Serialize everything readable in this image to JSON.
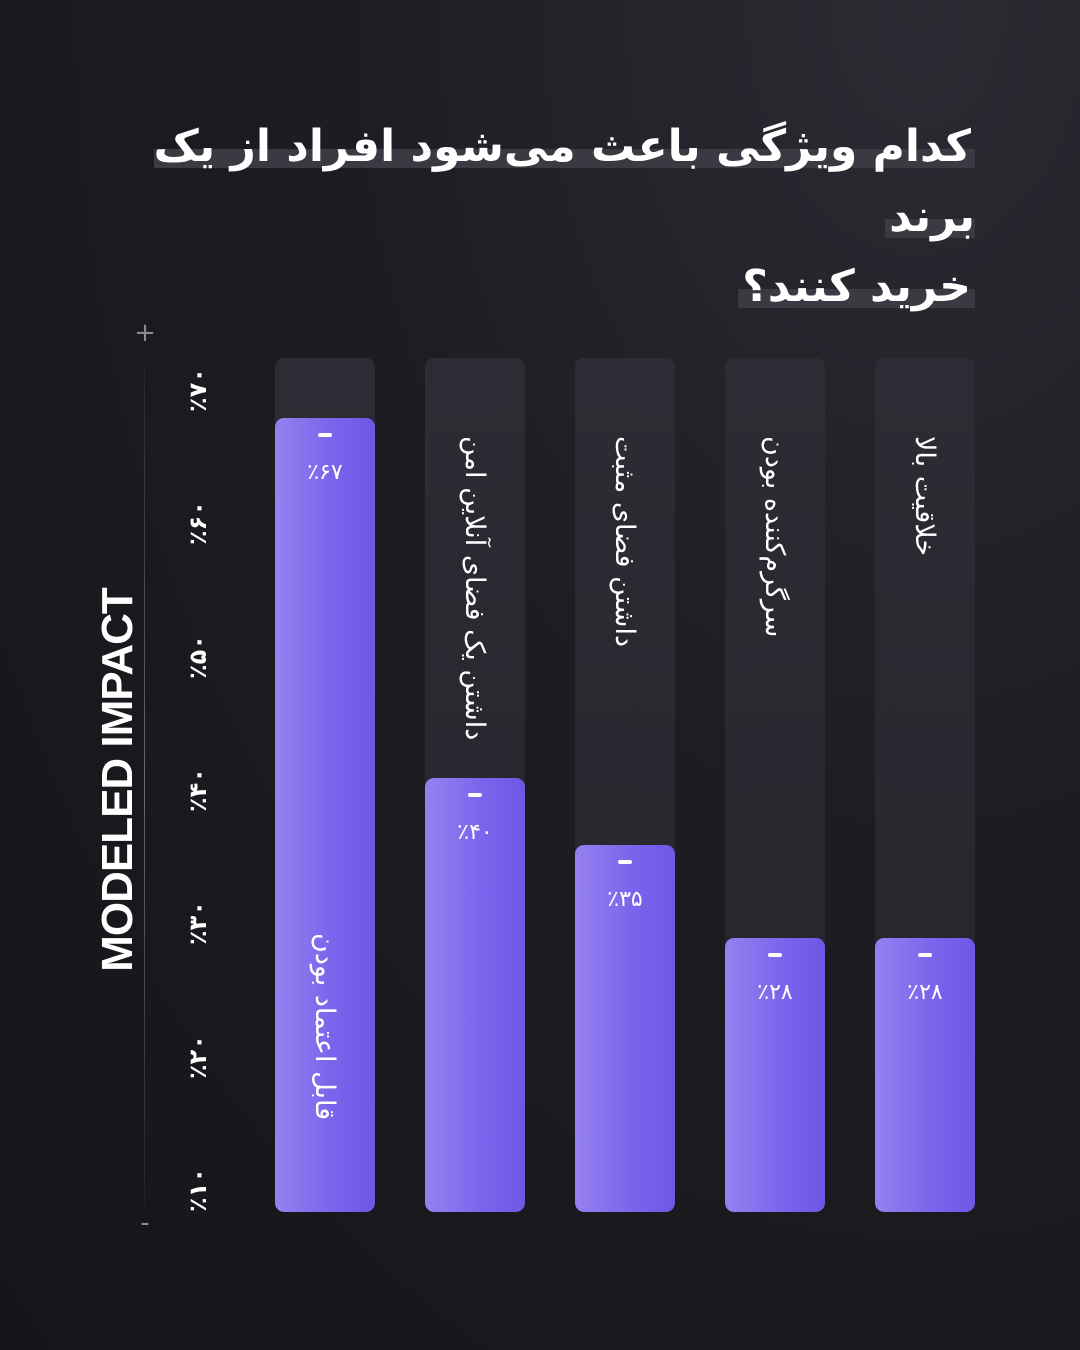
{
  "title": {
    "line1": "کدام ویژگی باعث می‌شود افراد از یک برند",
    "line2": "خرید کنند؟"
  },
  "axis": {
    "label": "MODELED IMPACT",
    "plus": "+",
    "minus": "-",
    "ticks": [
      "٪۱۰",
      "٪۲۰",
      "٪۳۰",
      "٪۴۰",
      "٪۵۰",
      "٪۶۰",
      "٪۷۰"
    ]
  },
  "colors": {
    "background": "#1c1c22",
    "track": "#2a2a31",
    "fill": "#7c65ec"
  },
  "bars": [
    {
      "label": "قابل اعتماد بودن",
      "value_text": "٪۶۷"
    },
    {
      "label": "داشتن یک فضای آنلاین امن",
      "value_text": "٪۴۰"
    },
    {
      "label": "داشتن فضای مثبت",
      "value_text": "٪۳۵"
    },
    {
      "label": "سرگرم‌کننده بودن",
      "value_text": "٪۲۸"
    },
    {
      "label": "خلاقیت بالا",
      "value_text": "٪۲۸"
    }
  ],
  "chart_data": {
    "type": "bar",
    "orientation": "vertical",
    "categories": [
      "قابل اعتماد بودن",
      "داشتن یک فضای آنلاین امن",
      "داشتن فضای مثبت",
      "سرگرم‌کننده بودن",
      "خلاقیت بالا"
    ],
    "values": [
      67,
      40,
      35,
      28,
      28
    ],
    "title": "کدام ویژگی باعث می‌شود افراد از یک برند خرید کنند؟",
    "xlabel": "",
    "ylabel": "MODELED IMPACT",
    "ylim": [
      10,
      70
    ],
    "grid": false,
    "legend": "none"
  }
}
